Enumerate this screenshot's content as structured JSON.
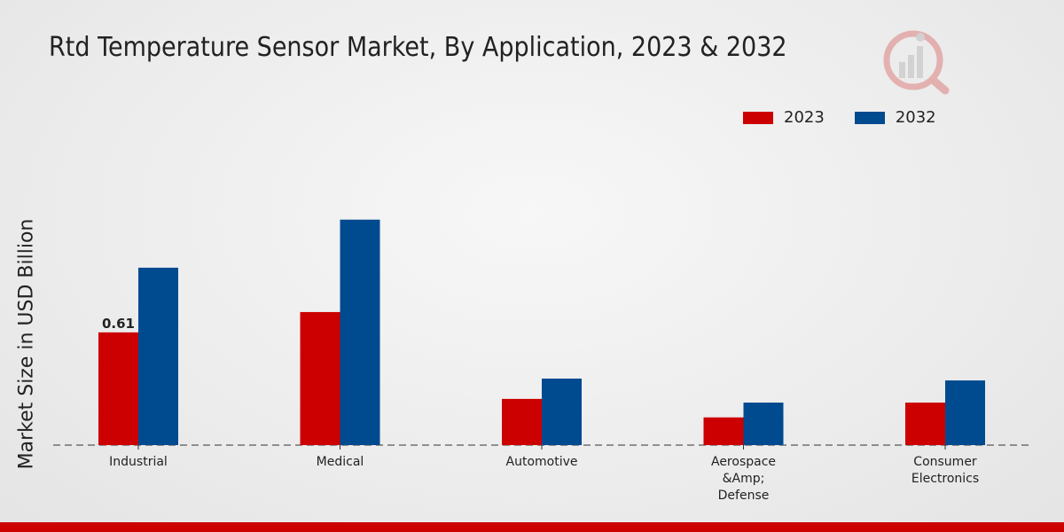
{
  "chart_data": {
    "type": "bar",
    "title": "Rtd Temperature Sensor Market, By Application, 2023 & 2032",
    "xlabel": "",
    "ylabel": "Market Size in USD Billion",
    "categories": [
      "Industrial",
      "Medical",
      "Automotive",
      "Aerospace &Amp; Defense",
      "Consumer Electronics"
    ],
    "category_lines": [
      [
        "Industrial"
      ],
      [
        "Medical"
      ],
      [
        "Automotive"
      ],
      [
        "Aerospace",
        "&Amp;",
        "Defense"
      ],
      [
        "Consumer",
        "Electronics"
      ]
    ],
    "series": [
      {
        "name": "2023",
        "color": "#cc0000",
        "values": [
          0.61,
          0.72,
          0.25,
          0.15,
          0.23
        ]
      },
      {
        "name": "2032",
        "color": "#004a8f",
        "values": [
          0.96,
          1.22,
          0.36,
          0.23,
          0.35
        ]
      }
    ],
    "data_labels": [
      {
        "series": "2023",
        "category": "Industrial",
        "text": "0.61"
      }
    ],
    "ylim": [
      0,
      1.9
    ],
    "grid": false,
    "legend": "top-right"
  },
  "colors": {
    "accent": "#cc0000",
    "series_2023": "#cc0000",
    "series_2032": "#004a8f"
  }
}
